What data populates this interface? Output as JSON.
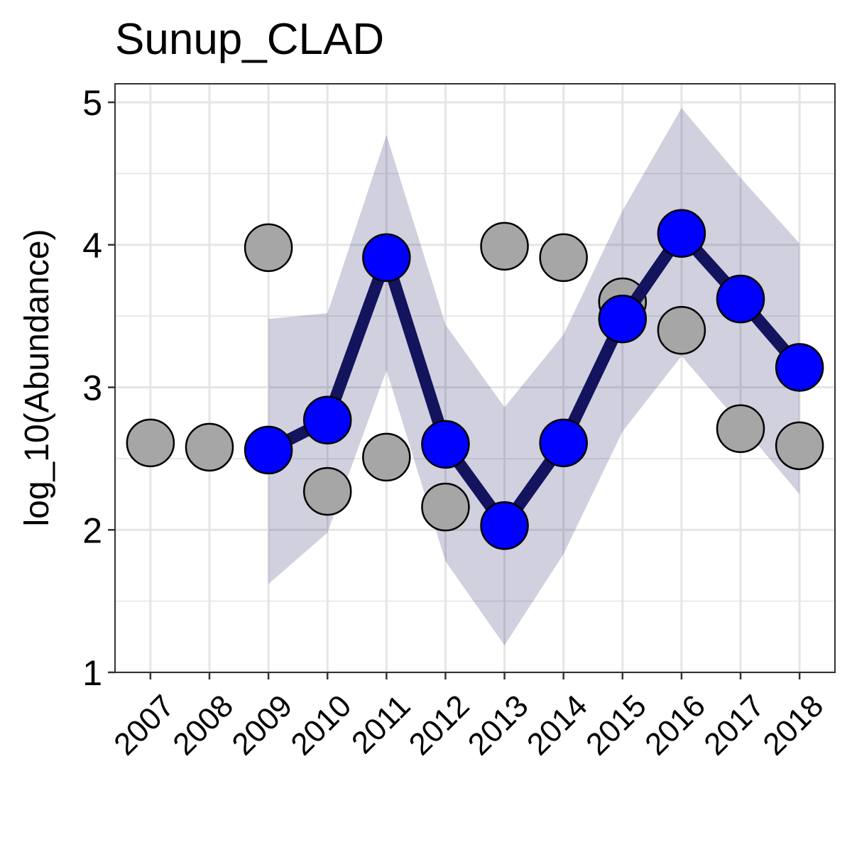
{
  "chart_data": {
    "type": "line",
    "title": "Sunup_CLAD",
    "xlabel": "",
    "ylabel": "log_10(Abundance)",
    "x": [
      2007,
      2008,
      2009,
      2010,
      2011,
      2012,
      2013,
      2014,
      2015,
      2016,
      2017,
      2018
    ],
    "x_tick_labels": [
      "2007",
      "2008",
      "2009",
      "2010",
      "2011",
      "2012",
      "2013",
      "2014",
      "2015",
      "2016",
      "2017",
      "2018"
    ],
    "xlim": [
      2006.4,
      2018.6
    ],
    "ylim": [
      1,
      5.13
    ],
    "y_ticks": [
      1,
      2,
      3,
      4,
      5
    ],
    "y_tick_labels": [
      "1",
      "2",
      "3",
      "4",
      "5"
    ],
    "grid": true,
    "legend": "none",
    "colors": {
      "fit_line": "#13135e",
      "fit_points": "#0000ff",
      "observed_points": "#a6a6a6",
      "ribbon": "#13135e",
      "grid": "#e5e5e5",
      "panel_border": "#333333"
    },
    "series": [
      {
        "kind": "ribbon",
        "x": [
          2009,
          2010,
          2011,
          2012,
          2013,
          2014,
          2015,
          2016,
          2017,
          2018
        ],
        "lower": [
          1.62,
          1.98,
          3.12,
          1.78,
          1.19,
          1.83,
          2.69,
          3.22,
          2.74,
          2.25
        ],
        "upper": [
          3.48,
          3.52,
          4.77,
          3.44,
          2.86,
          3.37,
          4.24,
          4.96,
          4.47,
          4.01
        ]
      },
      {
        "kind": "observed",
        "x": [
          2007,
          2008,
          2009,
          2010,
          2011,
          2012,
          2013,
          2014,
          2015,
          2016,
          2017,
          2018
        ],
        "values": [
          2.61,
          2.58,
          3.98,
          2.27,
          2.51,
          2.16,
          3.99,
          3.91,
          3.6,
          3.4,
          2.71,
          2.59
        ]
      },
      {
        "kind": "fitted",
        "x": [
          2009,
          2010,
          2011,
          2012,
          2013,
          2014,
          2015,
          2016,
          2017,
          2018
        ],
        "values": [
          2.56,
          2.77,
          3.91,
          2.6,
          2.03,
          2.61,
          3.48,
          4.08,
          3.62,
          3.14
        ]
      }
    ]
  }
}
